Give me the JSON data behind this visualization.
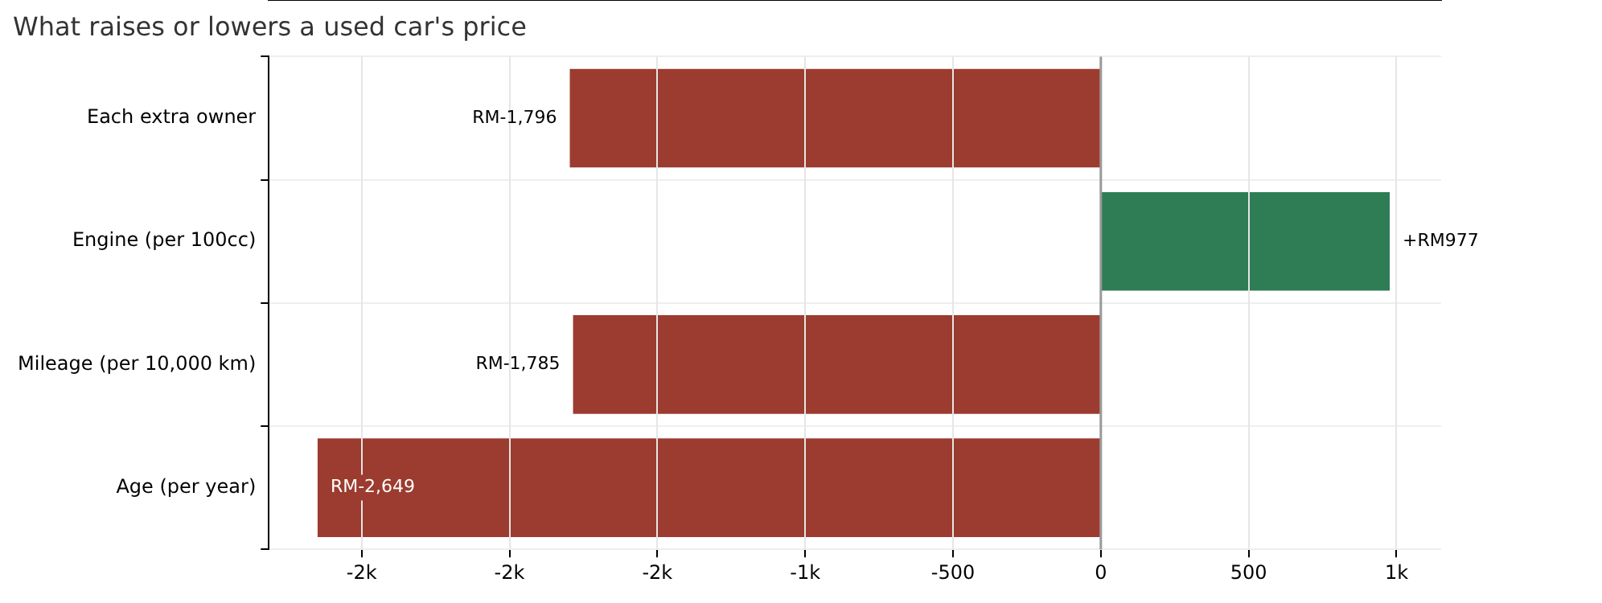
{
  "chart_data": {
    "type": "bar",
    "orientation": "horizontal",
    "title": "What raises or lowers a used car's price",
    "categories": [
      "Each extra owner",
      "Engine (per 100cc)",
      "Mileage (per 10,000 km)",
      "Age (per year)"
    ],
    "values": [
      -1796,
      977,
      -1785,
      -2649
    ],
    "value_labels": [
      "RM-1,796",
      "+RM977",
      "RM-1,785",
      "RM-2,649"
    ],
    "colors": [
      "#9c3b2f",
      "#2e7d55",
      "#9c3b2f",
      "#9c3b2f"
    ],
    "xlim": [
      -2814,
      1151
    ],
    "xticks": [
      {
        "value": -2500,
        "label": "-2k"
      },
      {
        "value": -2000,
        "label": "-2k"
      },
      {
        "value": -1500,
        "label": "-2k"
      },
      {
        "value": -1000,
        "label": "-1k"
      },
      {
        "value": -500,
        "label": "-500"
      },
      {
        "value": 0,
        "label": "0"
      },
      {
        "value": 500,
        "label": "500"
      },
      {
        "value": 1000,
        "label": "1k"
      }
    ],
    "ref_lines": [
      {
        "axis": "x",
        "value": 0,
        "color": "#999999"
      }
    ],
    "grid": true,
    "legend": false
  }
}
